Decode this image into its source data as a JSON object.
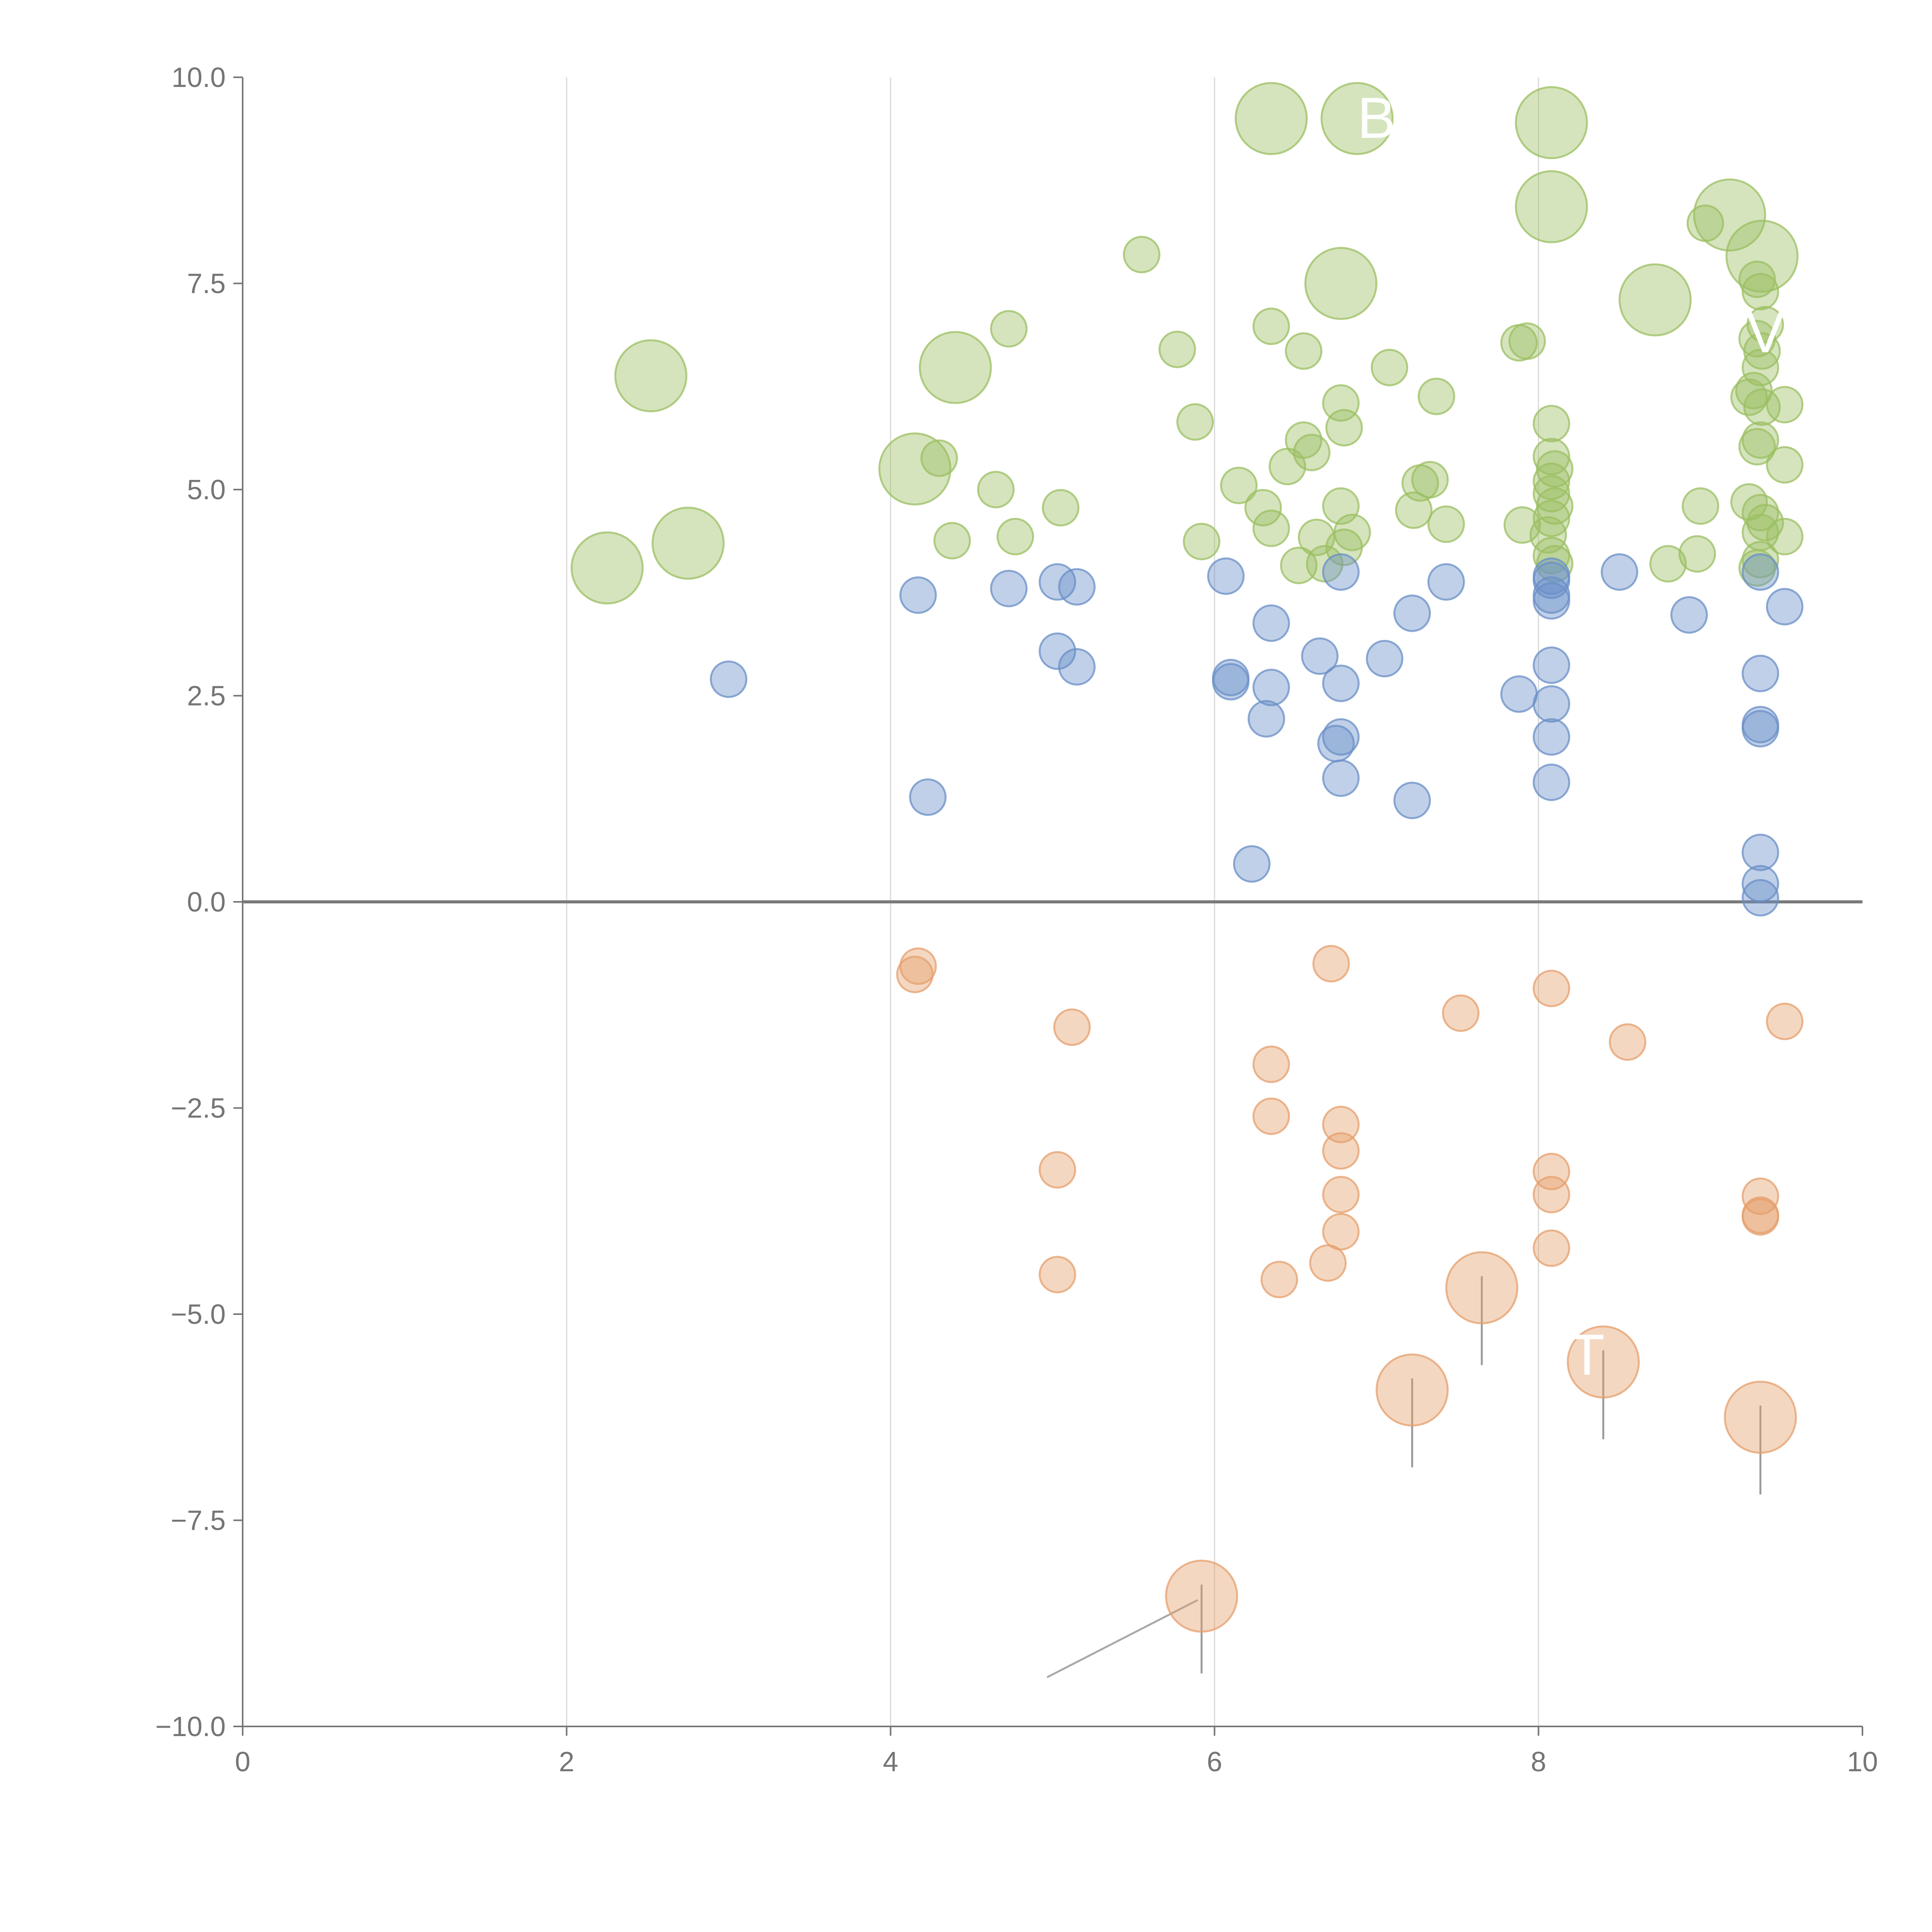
{
  "chart_data": {
    "type": "scatter",
    "title": "",
    "xlabel": "",
    "ylabel": "",
    "xlim": [
      0,
      10
    ],
    "ylim": [
      -10,
      10
    ],
    "x_ticks": [
      0,
      2,
      4,
      6,
      8,
      10
    ],
    "x_tick_labels": [
      "0",
      "2",
      "4",
      "6",
      "8",
      "10"
    ],
    "y_ticks": [
      10,
      7.5,
      5,
      2.5,
      0,
      -2.5,
      -5,
      -7.5,
      -10
    ],
    "y_tick_labels": [
      "10.0",
      "7.5",
      "5.0",
      "2.5",
      "0.0",
      "−2.5",
      "−5.0",
      "−7.5",
      "−10.0"
    ],
    "vertical_grid_at": [
      2,
      4,
      6,
      8
    ],
    "zero_line": true,
    "series": [
      {
        "name": "green",
        "color": "#9bbf62",
        "points": [
          [
            6.35,
            9.5,
            2
          ],
          [
            6.88,
            9.5,
            2
          ],
          [
            8.08,
            9.45,
            2
          ],
          [
            8.08,
            8.43,
            2
          ],
          [
            9.18,
            8.33,
            2
          ],
          [
            9.38,
            7.83,
            2
          ],
          [
            9.03,
            8.23,
            1
          ],
          [
            5.55,
            7.85,
            1
          ],
          [
            6.78,
            7.5,
            2
          ],
          [
            8.72,
            7.3,
            2
          ],
          [
            2.52,
            6.38,
            2
          ],
          [
            4.4,
            6.48,
            2
          ],
          [
            4.73,
            6.95,
            1
          ],
          [
            5.77,
            6.7,
            1
          ],
          [
            6.35,
            6.98,
            1
          ],
          [
            6.55,
            6.68,
            1
          ],
          [
            7.08,
            6.48,
            1
          ],
          [
            7.37,
            6.13,
            1
          ],
          [
            6.78,
            6.05,
            1
          ],
          [
            7.88,
            6.78,
            1
          ],
          [
            7.93,
            6.8,
            1
          ],
          [
            9.35,
            7.55,
            1
          ],
          [
            9.37,
            7.4,
            1
          ],
          [
            9.4,
            7.0,
            1
          ],
          [
            9.35,
            6.83,
            1
          ],
          [
            9.38,
            6.68,
            1
          ],
          [
            9.37,
            6.48,
            1
          ],
          [
            9.33,
            6.2,
            1
          ],
          [
            9.3,
            6.12,
            1
          ],
          [
            9.38,
            6.0,
            1
          ],
          [
            9.52,
            6.03,
            1
          ],
          [
            9.37,
            5.6,
            1
          ],
          [
            9.35,
            5.52,
            1
          ],
          [
            9.52,
            5.3,
            1
          ],
          [
            9.3,
            4.85,
            1
          ],
          [
            9.37,
            4.72,
            1
          ],
          [
            9.4,
            4.6,
            1
          ],
          [
            9.37,
            4.48,
            1
          ],
          [
            9.52,
            4.43,
            1
          ],
          [
            9.37,
            4.15,
            1
          ],
          [
            9.35,
            4.05,
            1
          ],
          [
            9.0,
            4.8,
            1
          ],
          [
            8.98,
            4.22,
            1
          ],
          [
            8.8,
            4.1,
            1
          ],
          [
            8.08,
            5.8,
            1
          ],
          [
            8.08,
            5.4,
            1
          ],
          [
            8.1,
            5.25,
            1
          ],
          [
            8.08,
            5.1,
            1
          ],
          [
            8.08,
            4.95,
            1
          ],
          [
            8.1,
            4.8,
            1
          ],
          [
            8.08,
            4.65,
            1
          ],
          [
            8.06,
            4.45,
            1
          ],
          [
            8.08,
            4.2,
            1
          ],
          [
            8.1,
            4.1,
            1
          ],
          [
            7.9,
            4.57,
            1
          ],
          [
            4.15,
            5.25,
            2
          ],
          [
            4.3,
            5.38,
            1
          ],
          [
            5.88,
            5.82,
            1
          ],
          [
            6.55,
            5.6,
            1
          ],
          [
            6.6,
            5.45,
            1
          ],
          [
            6.8,
            5.75,
            1
          ],
          [
            6.15,
            5.05,
            1
          ],
          [
            6.45,
            5.28,
            1
          ],
          [
            4.65,
            5.0,
            1
          ],
          [
            5.05,
            4.78,
            1
          ],
          [
            4.38,
            4.38,
            1
          ],
          [
            4.77,
            4.43,
            1
          ],
          [
            5.92,
            4.37,
            1
          ],
          [
            6.3,
            4.78,
            1
          ],
          [
            6.35,
            4.53,
            1
          ],
          [
            6.52,
            4.08,
            1
          ],
          [
            6.63,
            4.42,
            1
          ],
          [
            6.68,
            4.1,
            1
          ],
          [
            6.78,
            4.8,
            1
          ],
          [
            6.8,
            4.3,
            1
          ],
          [
            6.85,
            4.48,
            1
          ],
          [
            7.23,
            4.75,
            1
          ],
          [
            7.27,
            5.08,
            1
          ],
          [
            7.33,
            5.12,
            1
          ],
          [
            7.43,
            4.58,
            1
          ],
          [
            2.25,
            4.05,
            2
          ],
          [
            2.75,
            4.35,
            2
          ]
        ]
      },
      {
        "name": "blue",
        "color": "#6a8fc7",
        "points": [
          [
            3.0,
            2.7,
            1
          ],
          [
            4.17,
            3.72,
            1
          ],
          [
            4.23,
            1.27,
            1
          ],
          [
            4.73,
            3.8,
            1
          ],
          [
            5.03,
            3.88,
            1
          ],
          [
            5.15,
            3.82,
            1
          ],
          [
            5.03,
            3.04,
            1
          ],
          [
            5.15,
            2.85,
            1
          ],
          [
            6.07,
            3.95,
            1
          ],
          [
            6.1,
            2.72,
            1
          ],
          [
            6.1,
            2.67,
            1
          ],
          [
            6.23,
            0.46,
            1
          ],
          [
            6.32,
            2.22,
            1
          ],
          [
            6.35,
            3.38,
            1
          ],
          [
            6.35,
            2.6,
            1
          ],
          [
            6.65,
            2.98,
            1
          ],
          [
            6.75,
            1.92,
            1
          ],
          [
            6.78,
            2.0,
            1
          ],
          [
            6.78,
            1.5,
            1
          ],
          [
            6.78,
            2.65,
            1
          ],
          [
            6.78,
            4.0,
            1
          ],
          [
            7.05,
            2.95,
            1
          ],
          [
            7.22,
            3.5,
            1
          ],
          [
            7.22,
            1.23,
            1
          ],
          [
            7.43,
            3.88,
            1
          ],
          [
            7.88,
            2.52,
            1
          ],
          [
            8.08,
            3.95,
            1
          ],
          [
            8.08,
            3.65,
            1
          ],
          [
            8.08,
            3.72,
            1
          ],
          [
            8.08,
            2.87,
            1
          ],
          [
            8.08,
            2.4,
            1
          ],
          [
            8.08,
            2.0,
            1
          ],
          [
            8.08,
            1.45,
            1
          ],
          [
            8.08,
            3.9,
            1
          ],
          [
            8.5,
            4.0,
            1
          ],
          [
            8.93,
            3.48,
            1
          ],
          [
            9.37,
            4.0,
            1
          ],
          [
            9.52,
            3.58,
            1
          ],
          [
            9.37,
            2.77,
            1
          ],
          [
            9.37,
            2.15,
            1
          ],
          [
            9.37,
            2.1,
            1
          ],
          [
            9.37,
            0.6,
            1
          ],
          [
            9.37,
            0.22,
            1
          ],
          [
            9.37,
            0.05,
            1
          ]
        ]
      },
      {
        "name": "orange",
        "color": "#e59f6c",
        "points": [
          [
            4.17,
            -0.78,
            1
          ],
          [
            4.15,
            -0.88,
            1
          ],
          [
            5.12,
            -1.52,
            1
          ],
          [
            5.03,
            -3.25,
            1
          ],
          [
            5.03,
            -4.52,
            1
          ],
          [
            6.72,
            -0.75,
            1
          ],
          [
            6.35,
            -1.97,
            1
          ],
          [
            6.35,
            -2.6,
            1
          ],
          [
            6.78,
            -2.7,
            1
          ],
          [
            6.78,
            -3.02,
            1
          ],
          [
            6.78,
            -3.55,
            1
          ],
          [
            6.78,
            -4.0,
            1
          ],
          [
            6.7,
            -4.38,
            1
          ],
          [
            6.4,
            -4.58,
            1
          ],
          [
            7.52,
            -1.35,
            1
          ],
          [
            8.08,
            -1.05,
            1
          ],
          [
            8.08,
            -3.27,
            1
          ],
          [
            8.08,
            -3.55,
            1
          ],
          [
            8.08,
            -4.2,
            1
          ],
          [
            8.55,
            -1.7,
            1
          ],
          [
            9.52,
            -1.45,
            1
          ],
          [
            9.37,
            -3.57,
            1
          ],
          [
            9.37,
            -3.8,
            1
          ],
          [
            9.37,
            -3.82,
            1
          ],
          [
            7.65,
            -4.68,
            2
          ],
          [
            8.4,
            -5.58,
            2
          ],
          [
            7.22,
            -5.92,
            2
          ],
          [
            9.37,
            -6.25,
            2
          ],
          [
            5.92,
            -8.42,
            2
          ]
        ]
      }
    ],
    "callout_labels": [
      {
        "text": "B",
        "x": 7.0,
        "y": 9.5
      },
      {
        "text": "T",
        "x": 8.3,
        "y": -5.5
      },
      {
        "text": "V",
        "x": 9.4,
        "y": 6.9
      }
    ]
  }
}
